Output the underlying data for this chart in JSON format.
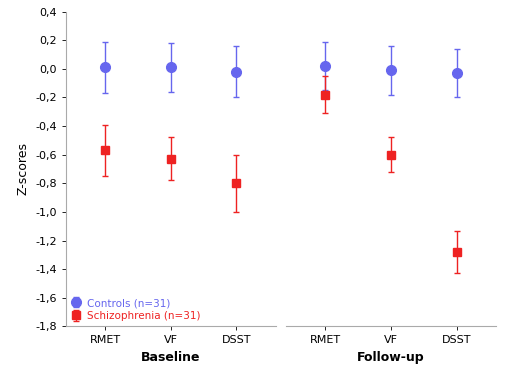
{
  "baseline": {
    "controls": {
      "y": [
        0.01,
        0.01,
        -0.02
      ],
      "yerr": [
        0.18,
        0.17,
        0.18
      ]
    },
    "schizophrenia": {
      "y": [
        -0.57,
        -0.63,
        -0.8
      ],
      "yerr": [
        0.18,
        0.15,
        0.2
      ]
    }
  },
  "followup": {
    "controls": {
      "y": [
        0.02,
        -0.01,
        -0.03
      ],
      "yerr": [
        0.17,
        0.17,
        0.17
      ]
    },
    "schizophrenia": {
      "y": [
        -0.18,
        -0.6,
        -1.28
      ],
      "yerr": [
        0.13,
        0.12,
        0.15
      ]
    }
  },
  "xtick_labels": [
    "RMET",
    "VF",
    "DSST"
  ],
  "xlabel_baseline": "Baseline",
  "xlabel_followup": "Follow-up",
  "ylabel": "Z-scores",
  "ylim": [
    -1.8,
    0.4
  ],
  "yticks": [
    -1.8,
    -1.6,
    -1.4,
    -1.2,
    -1.0,
    -0.8,
    -0.6,
    -0.4,
    -0.2,
    0.0,
    0.2,
    0.4
  ],
  "controls_color": "#6666ee",
  "schizophrenia_color": "#ee2222",
  "controls_label": "Controls (n=31)",
  "schizophrenia_label": "Schizophrenia (n=31)",
  "background_color": "#ffffff",
  "marker_size_ctrl": 7,
  "marker_size_schiz": 6,
  "line_width": 1.0,
  "elinewidth": 1.0,
  "capsize": 2
}
